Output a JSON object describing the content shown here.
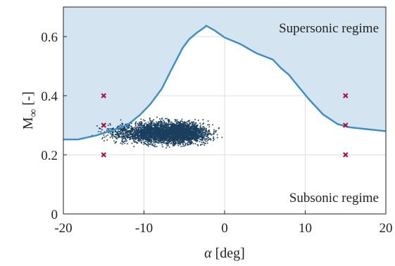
{
  "chart_data": {
    "type": "scatter",
    "xlabel_symbol": "α",
    "xlabel_unit": "[deg]",
    "ylabel_main": "M",
    "ylabel_sub": "∞",
    "ylabel_unit": "[-]",
    "xlim": [
      -20,
      20
    ],
    "ylim": [
      0,
      0.7
    ],
    "xticks": [
      -20,
      -10,
      0,
      10,
      20
    ],
    "yticks": [
      0,
      0.2,
      0.4,
      0.6
    ],
    "xtick_labels": [
      "-20",
      "-10",
      "0",
      "10",
      "20"
    ],
    "ytick_labels": [
      "0",
      "0.2",
      "0.4",
      "0.6"
    ],
    "grid": true,
    "annotations": {
      "supersonic": "Supersonic regime",
      "subsonic": "Subsonic regime"
    },
    "boundary": {
      "x": [
        -20,
        -18.2,
        -16,
        -14,
        -12,
        -10.5,
        -9.2,
        -7.8,
        -6.6,
        -5.2,
        -4.4,
        -3.4,
        -2.5,
        -2.3,
        -1.2,
        0,
        2,
        4,
        6,
        7,
        8,
        9,
        10.5,
        12.2,
        14,
        15.5,
        17.2,
        20
      ],
      "y": [
        0.252,
        0.252,
        0.265,
        0.282,
        0.302,
        0.335,
        0.372,
        0.423,
        0.488,
        0.562,
        0.591,
        0.614,
        0.631,
        0.637,
        0.62,
        0.597,
        0.574,
        0.543,
        0.522,
        0.493,
        0.47,
        0.436,
        0.387,
        0.337,
        0.304,
        0.293,
        0.288,
        0.28
      ]
    },
    "doe_points": {
      "x": [
        -15,
        -15,
        -15,
        15,
        15,
        15
      ],
      "y": [
        0.4,
        0.3,
        0.2,
        0.4,
        0.3,
        0.2
      ]
    },
    "cloud": {
      "x_center": -6.5,
      "x_extent": [
        -17,
        0
      ],
      "y_center": 0.275,
      "y_extent": [
        0.23,
        0.34
      ]
    },
    "colors": {
      "supersonic_fill": "#d5e4f1",
      "boundary_line": "#3b8dc8",
      "cloud_points": "#1b3f5e",
      "doe_markers": "#a4123a",
      "grid": "#dedede",
      "axes": "#222222"
    }
  }
}
